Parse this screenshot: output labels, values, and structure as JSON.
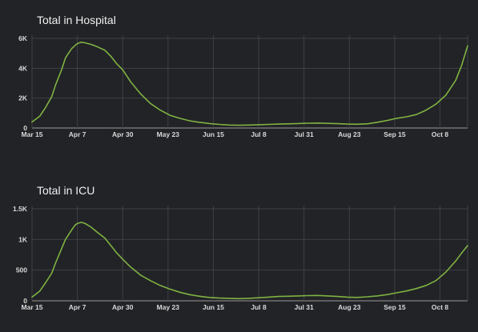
{
  "chart_data": [
    {
      "type": "line",
      "title": "Total in Hospital",
      "x_tick_labels": [
        "Mar 15",
        "Apr 7",
        "Apr 30",
        "May 23",
        "Jun 15",
        "Jul 8",
        "Jul 31",
        "Aug 23",
        "Sep 15",
        "Oct 8"
      ],
      "y_tick_labels": [
        "0",
        "2K",
        "4K",
        "6K"
      ],
      "y_ticks": [
        0,
        2000,
        4000,
        6000
      ],
      "ylim": [
        0,
        6000
      ],
      "x_day_range": [
        0,
        221
      ],
      "grid": true,
      "color": "#7fb241",
      "series": [
        {
          "x": [
            0,
            4,
            7,
            10,
            12,
            15,
            17,
            20,
            22,
            23,
            25,
            27,
            30,
            33,
            37,
            40,
            43,
            46,
            50,
            55,
            60,
            65,
            70,
            75,
            80,
            85,
            90,
            95,
            100,
            105,
            110,
            115,
            120,
            125,
            130,
            135,
            140,
            145,
            150,
            155,
            160,
            165,
            170,
            175,
            180,
            185,
            190,
            195,
            200,
            205,
            210,
            215,
            218,
            221
          ],
          "y": [
            400,
            800,
            1400,
            2100,
            2900,
            3900,
            4700,
            5300,
            5550,
            5650,
            5750,
            5700,
            5600,
            5450,
            5200,
            4800,
            4300,
            3900,
            3100,
            2300,
            1650,
            1200,
            850,
            650,
            480,
            380,
            300,
            240,
            200,
            180,
            200,
            220,
            240,
            260,
            280,
            300,
            320,
            330,
            310,
            290,
            260,
            250,
            280,
            380,
            500,
            650,
            750,
            900,
            1200,
            1600,
            2200,
            3200,
            4200,
            5500
          ]
        }
      ]
    },
    {
      "type": "line",
      "title": "Total in ICU",
      "x_tick_labels": [
        "Mar 15",
        "Apr 7",
        "Apr 30",
        "May 23",
        "Jun 15",
        "Jul 8",
        "Jul 31",
        "Aug 23",
        "Sep 15",
        "Oct 8"
      ],
      "y_tick_labels": [
        "0",
        "500",
        "1K",
        "1.5K"
      ],
      "y_ticks": [
        0,
        500,
        1000,
        1500
      ],
      "ylim": [
        0,
        1500
      ],
      "x_day_range": [
        0,
        221
      ],
      "grid": true,
      "color": "#7fb241",
      "series": [
        {
          "x": [
            0,
            4,
            7,
            10,
            12,
            15,
            17,
            20,
            22,
            23,
            25,
            27,
            30,
            33,
            37,
            40,
            43,
            46,
            50,
            55,
            60,
            65,
            70,
            75,
            80,
            85,
            90,
            95,
            100,
            105,
            110,
            115,
            120,
            125,
            130,
            135,
            140,
            145,
            150,
            155,
            160,
            165,
            170,
            175,
            180,
            185,
            190,
            195,
            200,
            205,
            210,
            215,
            218,
            221
          ],
          "y": [
            60,
            160,
            300,
            450,
            620,
            850,
            1000,
            1150,
            1240,
            1260,
            1280,
            1260,
            1200,
            1120,
            1020,
            900,
            780,
            680,
            550,
            420,
            330,
            250,
            190,
            140,
            100,
            75,
            55,
            45,
            40,
            35,
            40,
            50,
            60,
            70,
            75,
            80,
            85,
            88,
            80,
            70,
            60,
            55,
            65,
            80,
            100,
            130,
            160,
            200,
            250,
            330,
            470,
            650,
            780,
            900
          ]
        }
      ]
    }
  ]
}
